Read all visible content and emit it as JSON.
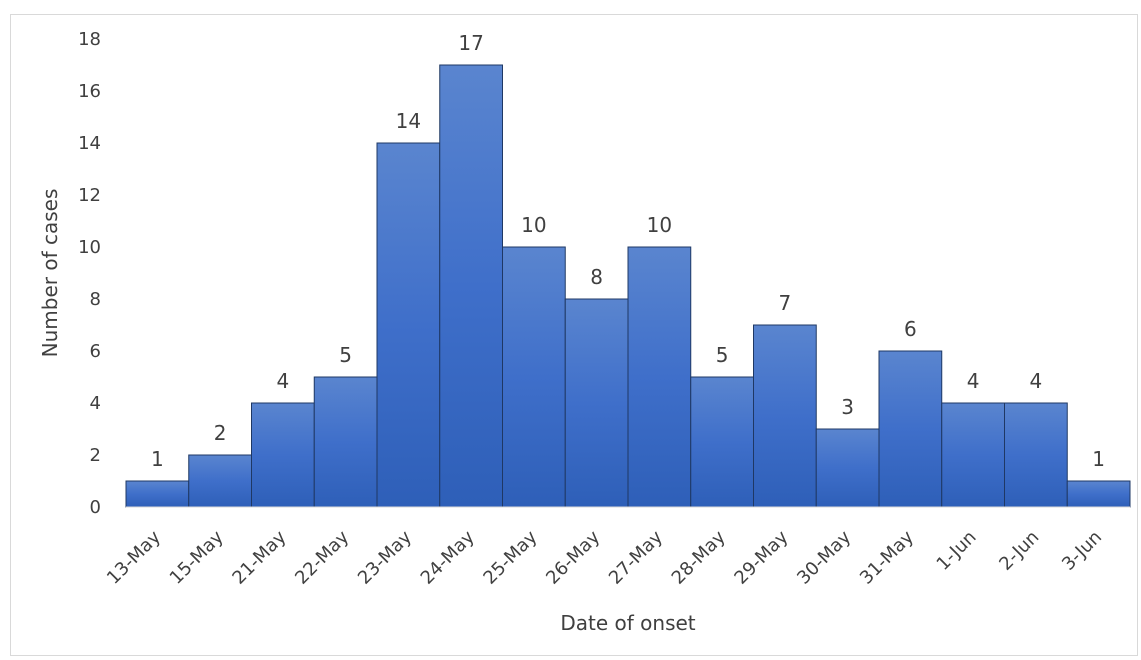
{
  "chart_data": {
    "type": "bar",
    "title": "",
    "xlabel": "Date of onset",
    "ylabel": "Number of cases",
    "categories": [
      "13-May",
      "15-May",
      "21-May",
      "22-May",
      "23-May",
      "24-May",
      "25-May",
      "26-May",
      "27-May",
      "28-May",
      "29-May",
      "30-May",
      "31-May",
      "1-Jun",
      "2-Jun",
      "3-Jun"
    ],
    "values": [
      1,
      2,
      4,
      5,
      14,
      17,
      10,
      8,
      10,
      5,
      7,
      3,
      6,
      4,
      4,
      1
    ],
    "ylim": [
      0,
      18
    ],
    "yticks": [
      "0",
      "2",
      "4",
      "6",
      "8",
      "10",
      "12",
      "14",
      "16",
      "18"
    ],
    "grid": false,
    "legend": "none",
    "bar_gap": 0,
    "x_tick_rotation_deg": -45,
    "colors": {
      "bar_fill": "#4472c4",
      "bar_stroke": "#1f3864",
      "axis_line": "#d9d9d9",
      "text": "#404040"
    }
  }
}
